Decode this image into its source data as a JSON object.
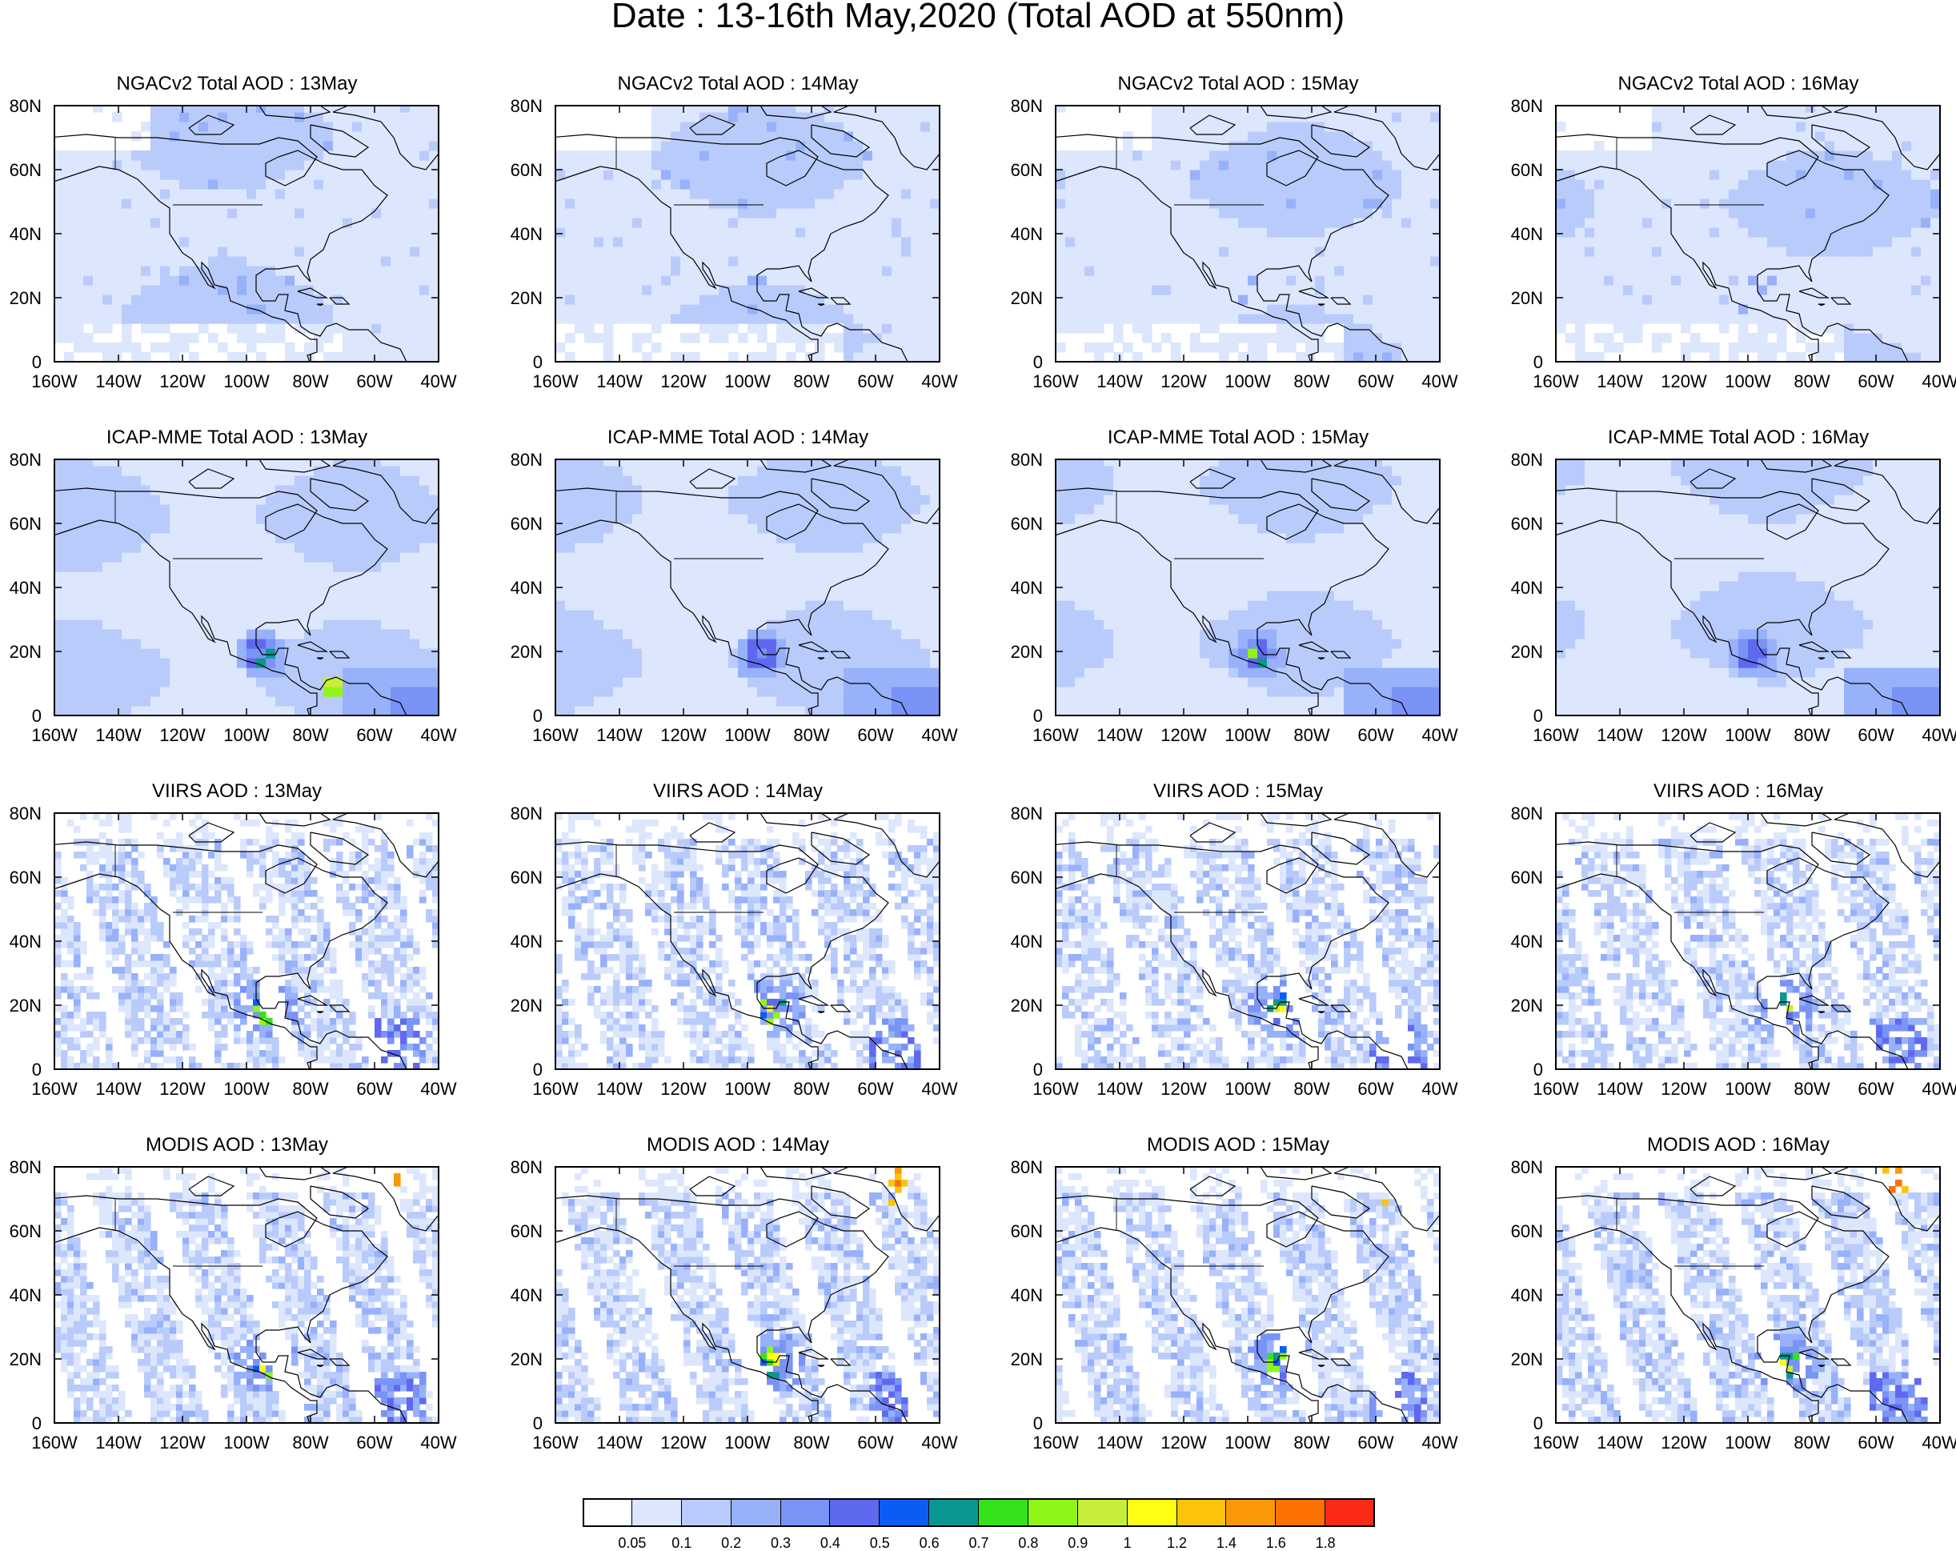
{
  "figure": {
    "title": "Date : 13-16th May,2020 (Total AOD at 550nm)"
  },
  "colors": {
    "background": "#ffffff",
    "coast": "#000000",
    "bins": [
      "#ffffff",
      "#dce6fd",
      "#b9cbfb",
      "#97b1fa",
      "#7a93f6",
      "#5f69f0",
      "#0b5cf5",
      "#0a9791",
      "#34e21a",
      "#8ff618",
      "#c7ee3a",
      "#fefe14",
      "#fbc40c",
      "#fb9808",
      "#fb7203",
      "#fb2a17"
    ]
  },
  "map": {
    "x_ticks": [
      "160W",
      "140W",
      "120W",
      "100W",
      "80W",
      "60W",
      "40W"
    ],
    "y_ticks": [
      "0",
      "20N",
      "40N",
      "60N",
      "80N"
    ],
    "lon_range": [
      -160,
      -40
    ],
    "lat_range": [
      0,
      80
    ]
  },
  "panels": [
    {
      "title": "NGACv2 Total AOD : 13May",
      "product": "NGACv2",
      "day": "13May"
    },
    {
      "title": "NGACv2 Total AOD : 14May",
      "product": "NGACv2",
      "day": "14May"
    },
    {
      "title": "NGACv2 Total AOD : 15May",
      "product": "NGACv2",
      "day": "15May"
    },
    {
      "title": "NGACv2 Total AOD : 16May",
      "product": "NGACv2",
      "day": "16May"
    },
    {
      "title": "ICAP-MME Total AOD : 13May",
      "product": "ICAP-MME",
      "day": "13May"
    },
    {
      "title": "ICAP-MME Total AOD : 14May",
      "product": "ICAP-MME",
      "day": "14May"
    },
    {
      "title": "ICAP-MME Total AOD : 15May",
      "product": "ICAP-MME",
      "day": "15May"
    },
    {
      "title": "ICAP-MME Total AOD : 16May",
      "product": "ICAP-MME",
      "day": "16May"
    },
    {
      "title": "VIIRS AOD : 13May",
      "product": "VIIRS",
      "day": "13May"
    },
    {
      "title": "VIIRS AOD : 14May",
      "product": "VIIRS",
      "day": "14May"
    },
    {
      "title": "VIIRS AOD : 15May",
      "product": "VIIRS",
      "day": "15May"
    },
    {
      "title": "VIIRS AOD : 16May",
      "product": "VIIRS",
      "day": "16May"
    },
    {
      "title": "MODIS AOD : 13May",
      "product": "MODIS",
      "day": "13May"
    },
    {
      "title": "MODIS AOD : 14May",
      "product": "MODIS",
      "day": "14May"
    },
    {
      "title": "MODIS AOD : 15May",
      "product": "MODIS",
      "day": "15May"
    },
    {
      "title": "MODIS AOD : 16May",
      "product": "MODIS",
      "day": "16May"
    }
  ],
  "colorbar": {
    "labels": [
      "0.05",
      "0.1",
      "0.2",
      "0.3",
      "0.4",
      "0.5",
      "0.6",
      "0.7",
      "0.8",
      "0.9",
      "1",
      "1.2",
      "1.4",
      "1.6",
      "1.8"
    ]
  }
}
